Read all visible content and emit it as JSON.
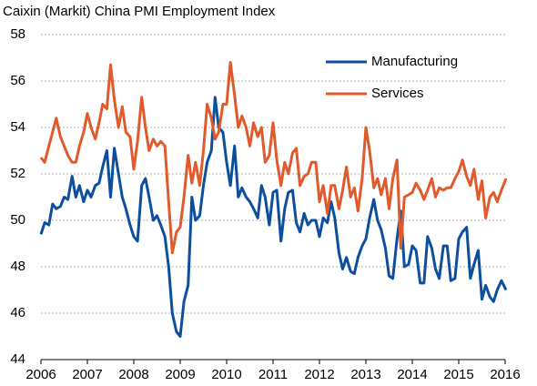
{
  "chart_data": {
    "type": "line",
    "title": "Caixin (Markit) China PMI Employment Index",
    "x": [
      2006,
      2006.08,
      2006.17,
      2006.25,
      2006.33,
      2006.42,
      2006.5,
      2006.58,
      2006.67,
      2006.75,
      2006.83,
      2006.92,
      2007,
      2007.08,
      2007.17,
      2007.25,
      2007.33,
      2007.42,
      2007.5,
      2007.58,
      2007.67,
      2007.75,
      2007.83,
      2007.92,
      2008,
      2008.08,
      2008.17,
      2008.25,
      2008.33,
      2008.42,
      2008.5,
      2008.58,
      2008.67,
      2008.75,
      2008.83,
      2008.92,
      2009,
      2009.08,
      2009.17,
      2009.25,
      2009.33,
      2009.42,
      2009.5,
      2009.58,
      2009.67,
      2009.75,
      2009.83,
      2009.92,
      2010,
      2010.08,
      2010.17,
      2010.25,
      2010.33,
      2010.42,
      2010.5,
      2010.58,
      2010.67,
      2010.75,
      2010.83,
      2010.92,
      2011,
      2011.08,
      2011.17,
      2011.25,
      2011.33,
      2011.42,
      2011.5,
      2011.58,
      2011.67,
      2011.75,
      2011.83,
      2011.92,
      2012,
      2012.08,
      2012.17,
      2012.25,
      2012.33,
      2012.42,
      2012.5,
      2012.58,
      2012.67,
      2012.75,
      2012.83,
      2012.92,
      2013,
      2013.08,
      2013.17,
      2013.25,
      2013.33,
      2013.42,
      2013.5,
      2013.58,
      2013.67,
      2013.75,
      2013.83,
      2013.92,
      2014,
      2014.08,
      2014.17,
      2014.25,
      2014.33,
      2014.42,
      2014.5,
      2014.58,
      2014.67,
      2014.75,
      2014.83,
      2014.92,
      2015,
      2015.08,
      2015.17,
      2015.25,
      2015.33,
      2015.42,
      2015.5,
      2015.58,
      2015.67,
      2015.75,
      2015.83,
      2015.92,
      2016.02
    ],
    "series": [
      {
        "name": "Manufacturing",
        "color": "#0d4f9e",
        "values": [
          49.4,
          49.9,
          49.8,
          50.7,
          50.5,
          50.6,
          51.0,
          50.9,
          51.9,
          51.0,
          51.5,
          50.8,
          51.3,
          51.0,
          51.5,
          51.6,
          52.3,
          53.0,
          51.0,
          53.1,
          52.0,
          51.0,
          50.5,
          49.8,
          49.3,
          49.1,
          51.5,
          51.8,
          51.0,
          50.0,
          50.2,
          49.8,
          49.3,
          48.0,
          46.0,
          45.2,
          45.0,
          46.5,
          47.2,
          51.0,
          50.0,
          50.2,
          51.5,
          52.5,
          53.0,
          55.3,
          54.0,
          53.8,
          52.5,
          51.5,
          53.2,
          51.0,
          51.4,
          51.0,
          50.8,
          50.5,
          50.1,
          51.5,
          51.0,
          49.8,
          51.2,
          51.3,
          49.1,
          50.5,
          51.2,
          51.3,
          49.9,
          49.5,
          50.3,
          49.8,
          50.0,
          50.0,
          49.3,
          50.1,
          49.9,
          50.8,
          50.1,
          48.6,
          47.9,
          48.4,
          47.8,
          47.7,
          48.4,
          48.9,
          49.2,
          50.1,
          50.9,
          50.0,
          49.6,
          48.8,
          47.6,
          47.5,
          49.2,
          50.4,
          48.0,
          48.1,
          48.9,
          48.7,
          47.3,
          47.3,
          49.3,
          48.8,
          47.9,
          47.5,
          48.9,
          48.9,
          47.4,
          47.5,
          49.2,
          49.5,
          49.7,
          47.5,
          48.1,
          48.7,
          46.6,
          47.2,
          46.7,
          46.5,
          47.0,
          47.4,
          47.0
        ]
      },
      {
        "name": "Services",
        "color": "#e05a2b",
        "values": [
          52.7,
          52.5,
          53.2,
          53.8,
          54.4,
          53.6,
          53.2,
          52.8,
          52.5,
          52.5,
          53.2,
          53.8,
          54.6,
          54.0,
          53.5,
          54.2,
          55.0,
          54.8,
          56.7,
          55.2,
          54.0,
          54.9,
          53.8,
          53.6,
          52.2,
          53.4,
          55.3,
          54.0,
          53.0,
          53.5,
          53.2,
          53.4,
          53.2,
          50.8,
          48.6,
          49.5,
          49.7,
          51.0,
          52.8,
          51.6,
          52.5,
          51.5,
          53.0,
          55.0,
          54.4,
          53.5,
          53.8,
          55.0,
          55.0,
          56.8,
          55.4,
          54.0,
          54.5,
          54.0,
          53.2,
          54.2,
          53.6,
          54.0,
          52.5,
          52.8,
          54.2,
          52.6,
          51.5,
          52.5,
          52.0,
          52.9,
          53.1,
          51.5,
          51.9,
          52.0,
          52.5,
          52.5,
          50.8,
          51.5,
          50.3,
          51.5,
          51.5,
          50.5,
          51.3,
          52.3,
          51.0,
          51.4,
          50.4,
          51.8,
          54.0,
          53.0,
          51.4,
          51.8,
          51.1,
          51.8,
          50.5,
          51.8,
          52.6,
          48.8,
          51.0,
          51.1,
          51.2,
          51.6,
          51.3,
          50.9,
          51.3,
          51.8,
          51.0,
          51.4,
          51.3,
          51.4,
          51.4,
          51.8,
          52.1,
          52.6,
          51.9,
          51.5,
          52.2,
          50.9,
          51.7,
          50.1,
          51.0,
          51.2,
          50.8,
          51.3,
          51.8
        ]
      }
    ],
    "xlim": [
      2006,
      2016
    ],
    "xticks": [
      2006,
      2007,
      2008,
      2009,
      2010,
      2011,
      2012,
      2013,
      2014,
      2015,
      2016
    ],
    "ylim": [
      44,
      58
    ],
    "yticks": [
      44,
      46,
      48,
      50,
      52,
      54,
      56,
      58
    ],
    "grid": true,
    "legend": "upper right"
  }
}
